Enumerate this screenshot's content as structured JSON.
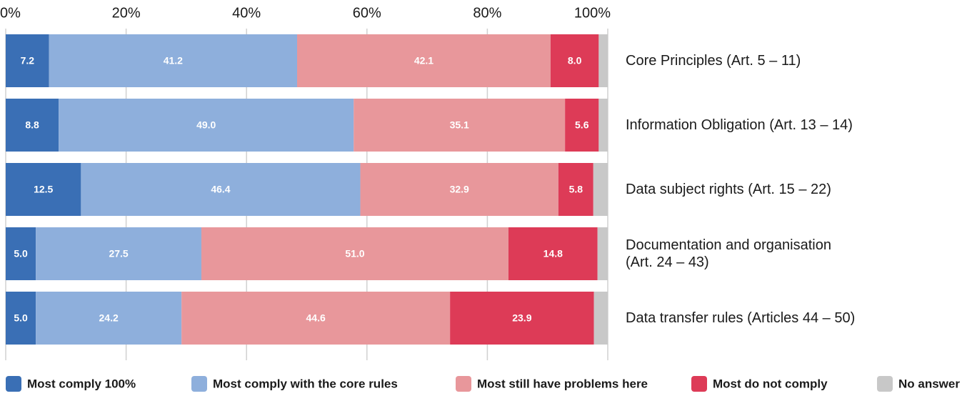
{
  "chart_data": {
    "type": "stacked_bar_horizontal",
    "categories": [
      "Core Principles (Art. 5 – 11)",
      "Information Obligation (Art. 13 – 14)",
      "Data subject rights (Art. 15 – 22)",
      "Documentation and organisation\n(Art. 24 – 43)",
      "Data transfer rules (Articles 44 – 50)"
    ],
    "series": [
      {
        "name": "Most comply 100%",
        "color": "#3a6fb5",
        "values": [
          7.2,
          8.8,
          12.5,
          5.0,
          5.0
        ],
        "value_labels": [
          "7.2",
          "8.8",
          "12.5",
          "5.0",
          "5.0"
        ]
      },
      {
        "name": "Most comply with the core rules",
        "color": "#8eafdc",
        "values": [
          41.2,
          49.0,
          46.4,
          27.5,
          24.2
        ],
        "value_labels": [
          "41.2",
          "49.0",
          "46.4",
          "27.5",
          "24.2"
        ]
      },
      {
        "name": "Most still have problems here",
        "color": "#e8979b",
        "values": [
          42.1,
          35.1,
          32.9,
          51.0,
          44.6
        ],
        "value_labels": [
          "42.1",
          "35.1",
          "32.9",
          "51.0",
          "44.6"
        ]
      },
      {
        "name": "Most do not comply",
        "color": "#dd3b57",
        "values": [
          8.0,
          5.6,
          5.8,
          14.8,
          23.9
        ],
        "value_labels": [
          "8.0",
          "5.6",
          "5.8",
          "14.8",
          "23.9"
        ]
      },
      {
        "name": "No answer",
        "color": "#c8c8c8",
        "values": [
          1.5,
          1.5,
          2.4,
          1.7,
          2.3
        ]
      }
    ],
    "xlim": [
      0,
      100
    ],
    "xticks": [
      {
        "value": 0,
        "label": "0%"
      },
      {
        "value": 20,
        "label": "20%"
      },
      {
        "value": 40,
        "label": "40%"
      },
      {
        "value": 60,
        "label": "60%"
      },
      {
        "value": 80,
        "label": "80%"
      },
      {
        "value": 100,
        "label": "100%"
      }
    ],
    "grid": true,
    "legend": "bottom"
  }
}
